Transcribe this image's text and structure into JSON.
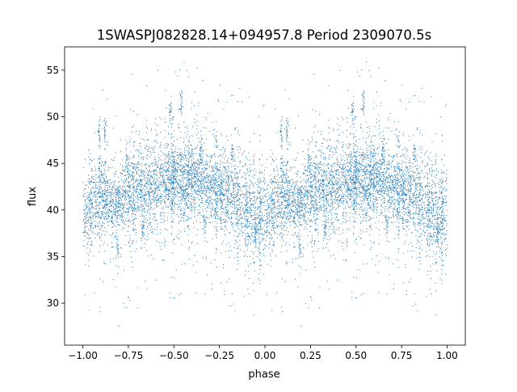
{
  "chart_data": {
    "type": "scatter",
    "title": "1SWASPJ082828.14+094957.8 Period 2309070.5s",
    "xlabel": "phase",
    "ylabel": "flux",
    "xlim": [
      -1.1,
      1.1
    ],
    "ylim": [
      25.5,
      57.5
    ],
    "xticks": [
      -1.0,
      -0.75,
      -0.5,
      -0.25,
      0.0,
      0.25,
      0.5,
      0.75,
      1.0
    ],
    "xtick_labels": [
      "−1.00",
      "−0.75",
      "−0.50",
      "−0.25",
      "0.00",
      "0.25",
      "0.50",
      "0.75",
      "1.00"
    ],
    "yticks": [
      30,
      35,
      40,
      45,
      50,
      55
    ],
    "ytick_labels": [
      "30",
      "35",
      "40",
      "45",
      "50",
      "55"
    ],
    "grid": false,
    "legend": "none",
    "marker_color": "#1f77b4",
    "profile": {
      "phase": [
        0.0,
        0.05,
        0.1,
        0.15,
        0.2,
        0.25,
        0.3,
        0.35,
        0.4,
        0.45,
        0.5,
        0.55,
        0.6,
        0.65,
        0.7,
        0.75,
        0.8,
        0.85,
        0.9,
        0.95,
        1.0
      ],
      "flux_center": [
        39.5,
        40.5,
        41.5,
        41.0,
        40.5,
        42.0,
        42.5,
        42.0,
        42.5,
        43.0,
        43.5,
        43.0,
        43.5,
        43.0,
        42.5,
        42.0,
        41.5,
        41.0,
        40.0,
        39.5,
        39.5
      ],
      "flux_spread": [
        4.0,
        3.5,
        3.5,
        3.0,
        3.0,
        3.5,
        3.5,
        3.5,
        3.0,
        3.0,
        3.0,
        3.0,
        3.0,
        3.0,
        3.5,
        4.0,
        4.0,
        4.0,
        4.0,
        4.0,
        4.0
      ]
    },
    "clusters": [
      {
        "phase": 0.09,
        "flux": 48.0
      },
      {
        "phase": 0.12,
        "flux": 48.5
      },
      {
        "phase": 0.19,
        "flux": 36.0
      },
      {
        "phase": 0.48,
        "flux": 50.5
      },
      {
        "phase": 0.54,
        "flux": 51.5
      },
      {
        "phase": 0.65,
        "flux": 46.5
      },
      {
        "phase": 0.67,
        "flux": 38.5
      },
      {
        "phase": 0.33,
        "flux": 38.0
      },
      {
        "phase": 0.24,
        "flux": 45.5
      },
      {
        "phase": 0.82,
        "flux": 46.0
      },
      {
        "phase": 0.95,
        "flux": 37.5
      }
    ],
    "point_count": 3200
  }
}
